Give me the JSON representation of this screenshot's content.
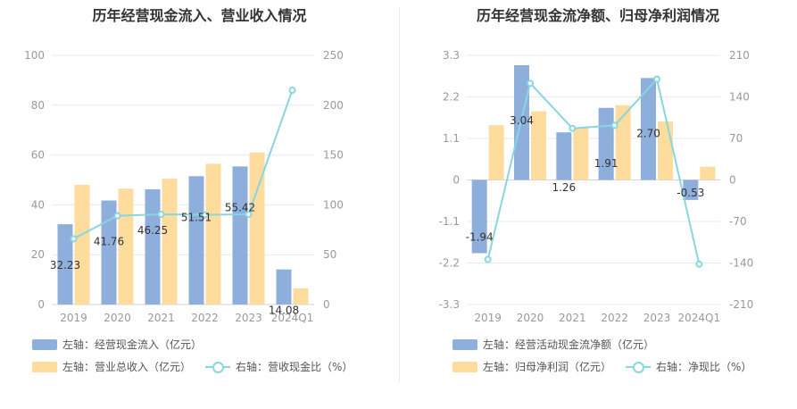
{
  "chart_data": [
    {
      "type": "bar",
      "title": "历年经营现金流入、营业收入情况",
      "categories": [
        "2019",
        "2020",
        "2021",
        "2022",
        "2023",
        "2024Q1"
      ],
      "left_axis": {
        "ticks": [
          "0",
          "20",
          "40",
          "60",
          "80",
          "100"
        ],
        "range": [
          0,
          100
        ]
      },
      "right_axis": {
        "ticks": [
          "0",
          "50",
          "100",
          "150",
          "200",
          "250"
        ],
        "range": [
          0,
          250
        ]
      },
      "series": [
        {
          "name": "左轴：经营现金流入（亿元）",
          "type": "bar",
          "axis": "left",
          "color": "#8eaedb",
          "values": [
            32.23,
            41.76,
            46.25,
            51.51,
            55.42,
            14.08
          ],
          "labels": [
            "32.23",
            "41.76",
            "46.25",
            "51.51",
            "55.42",
            "14.08"
          ]
        },
        {
          "name": "左轴：营业总收入（亿元）",
          "type": "bar",
          "axis": "left",
          "color": "#fddc9e",
          "values": [
            48,
            46.5,
            50.5,
            56.5,
            61,
            6.5
          ]
        },
        {
          "name": "右轴：营收现金比（%）",
          "type": "line",
          "axis": "right",
          "color": "#88d6df",
          "values": [
            66,
            89,
            90.5,
            90,
            90.5,
            215
          ]
        }
      ],
      "legend_position": "bottom-left"
    },
    {
      "type": "bar",
      "title": "历年经营现金流净额、归母净利润情况",
      "categories": [
        "2019",
        "2020",
        "2021",
        "2022",
        "2023",
        "2024Q1"
      ],
      "left_axis": {
        "ticks": [
          "-3.3",
          "-2.2",
          "-1.1",
          "0",
          "1.1",
          "2.2",
          "3.3"
        ],
        "range": [
          -3.3,
          3.3
        ]
      },
      "right_axis": {
        "ticks": [
          "-210",
          "-140",
          "-70",
          "0",
          "70",
          "140",
          "210"
        ],
        "range": [
          -210,
          210
        ]
      },
      "series": [
        {
          "name": "左轴：经营活动现金流净额（亿元）",
          "type": "bar",
          "axis": "left",
          "color": "#8eaedb",
          "values": [
            -1.94,
            3.04,
            1.26,
            1.91,
            2.7,
            -0.53
          ],
          "labels": [
            "-1.94",
            "3.04",
            "1.26",
            "1.91",
            "2.70",
            "-0.53"
          ]
        },
        {
          "name": "左轴：归母净利润（亿元）",
          "type": "bar",
          "axis": "left",
          "color": "#fddc9e",
          "values": [
            1.45,
            1.82,
            1.38,
            1.98,
            1.55,
            0.35
          ]
        },
        {
          "name": "右轴：净现比（%）",
          "type": "line",
          "axis": "right",
          "color": "#88d6df",
          "values": [
            -134,
            163,
            87,
            92,
            170,
            -142
          ]
        }
      ],
      "legend_position": "bottom-left"
    }
  ]
}
